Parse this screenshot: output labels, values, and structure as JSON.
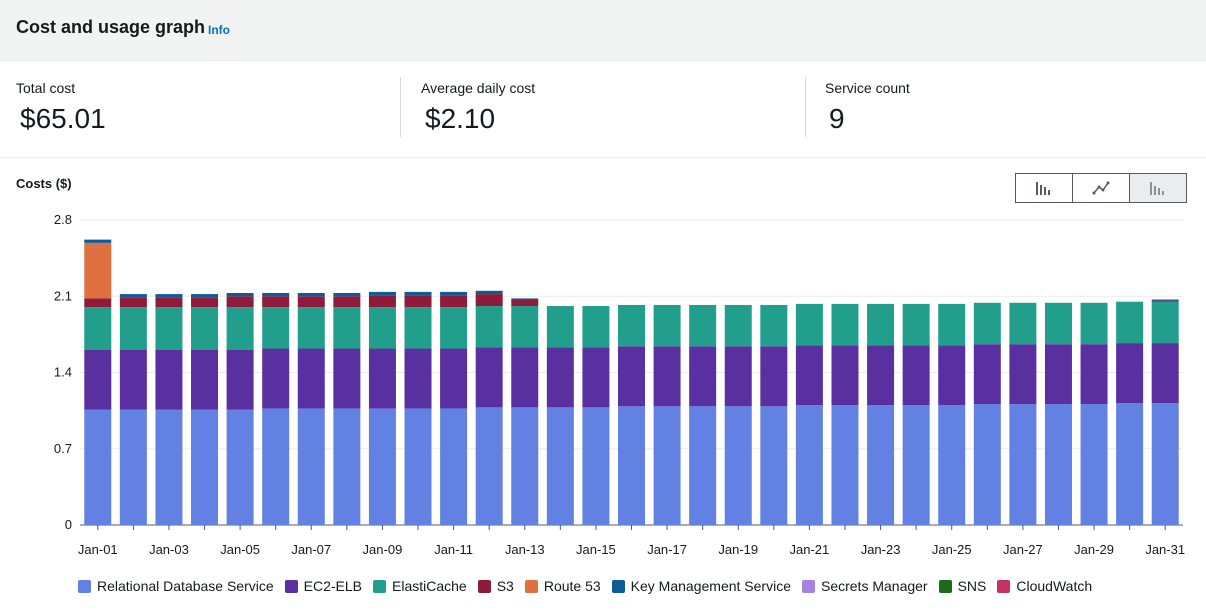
{
  "header": {
    "title": "Cost and usage graph",
    "info_link": "Info"
  },
  "summary": [
    {
      "label": "Total cost",
      "value": "$65.01"
    },
    {
      "label": "Average daily cost",
      "value": "$2.10"
    },
    {
      "label": "Service count",
      "value": "9"
    }
  ],
  "chart_header": {
    "costs_label": "Costs ($)",
    "toggles": [
      {
        "icon": "bar-chart-icon",
        "active": false
      },
      {
        "icon": "line-chart-icon",
        "active": false
      },
      {
        "icon": "stacked-bar-chart-icon",
        "active": true
      }
    ]
  },
  "legend": [
    {
      "name": "Relational Database Service",
      "color": "#6281e2"
    },
    {
      "name": "EC2-ELB",
      "color": "#5a2fa0"
    },
    {
      "name": "ElastiCache",
      "color": "#229e8d"
    },
    {
      "name": "S3",
      "color": "#8e1b3a"
    },
    {
      "name": "Route 53",
      "color": "#e07040"
    },
    {
      "name": "Key Management Service",
      "color": "#0f5a98"
    },
    {
      "name": "Secrets Manager",
      "color": "#a782e2"
    },
    {
      "name": "SNS",
      "color": "#1a6b1a"
    },
    {
      "name": "CloudWatch",
      "color": "#c8315e"
    }
  ],
  "chart_data": {
    "type": "bar",
    "stacked": true,
    "title": "",
    "xlabel": "",
    "ylabel": "Costs ($)",
    "ylim": [
      0,
      2.8
    ],
    "yticks": [
      "0",
      "0.7",
      "1.4",
      "2.1",
      "2.8"
    ],
    "grid": true,
    "legend_position": "bottom",
    "categories": [
      "Jan-01",
      "Jan-02",
      "Jan-03",
      "Jan-04",
      "Jan-05",
      "Jan-06",
      "Jan-07",
      "Jan-08",
      "Jan-09",
      "Jan-10",
      "Jan-11",
      "Jan-12",
      "Jan-13",
      "Jan-14",
      "Jan-15",
      "Jan-16",
      "Jan-17",
      "Jan-18",
      "Jan-19",
      "Jan-20",
      "Jan-21",
      "Jan-22",
      "Jan-23",
      "Jan-24",
      "Jan-25",
      "Jan-26",
      "Jan-27",
      "Jan-28",
      "Jan-29",
      "Jan-30",
      "Jan-31"
    ],
    "xtick_labels": [
      "Jan-01",
      "",
      "Jan-03",
      "",
      "Jan-05",
      "",
      "Jan-07",
      "",
      "Jan-09",
      "",
      "Jan-11",
      "",
      "Jan-13",
      "",
      "Jan-15",
      "",
      "Jan-17",
      "",
      "Jan-19",
      "",
      "Jan-21",
      "",
      "Jan-23",
      "",
      "Jan-25",
      "",
      "Jan-27",
      "",
      "Jan-29",
      "",
      "Jan-31"
    ],
    "series": [
      {
        "name": "Relational Database Service",
        "color": "#6281e2",
        "values": [
          1.06,
          1.06,
          1.06,
          1.06,
          1.06,
          1.07,
          1.07,
          1.07,
          1.07,
          1.07,
          1.07,
          1.08,
          1.08,
          1.08,
          1.08,
          1.09,
          1.09,
          1.09,
          1.09,
          1.09,
          1.1,
          1.1,
          1.1,
          1.1,
          1.1,
          1.11,
          1.11,
          1.11,
          1.11,
          1.12,
          1.12
        ]
      },
      {
        "name": "EC2-ELB",
        "color": "#5a2fa0",
        "values": [
          0.55,
          0.55,
          0.55,
          0.55,
          0.55,
          0.55,
          0.55,
          0.55,
          0.55,
          0.55,
          0.55,
          0.55,
          0.55,
          0.55,
          0.55,
          0.55,
          0.55,
          0.55,
          0.55,
          0.55,
          0.55,
          0.55,
          0.55,
          0.55,
          0.55,
          0.55,
          0.55,
          0.55,
          0.55,
          0.55,
          0.55
        ]
      },
      {
        "name": "ElastiCache",
        "color": "#229e8d",
        "values": [
          0.39,
          0.39,
          0.39,
          0.39,
          0.39,
          0.38,
          0.38,
          0.38,
          0.38,
          0.38,
          0.38,
          0.38,
          0.38,
          0.38,
          0.38,
          0.38,
          0.38,
          0.38,
          0.38,
          0.38,
          0.38,
          0.38,
          0.38,
          0.38,
          0.38,
          0.38,
          0.38,
          0.38,
          0.38,
          0.38,
          0.38
        ]
      },
      {
        "name": "S3",
        "color": "#8e1b3a",
        "values": [
          0.08,
          0.09,
          0.09,
          0.09,
          0.1,
          0.1,
          0.1,
          0.1,
          0.11,
          0.11,
          0.11,
          0.11,
          0.06,
          0,
          0,
          0,
          0,
          0,
          0,
          0,
          0,
          0,
          0,
          0,
          0,
          0,
          0,
          0,
          0,
          0,
          0.01
        ]
      },
      {
        "name": "Route 53",
        "color": "#e07040",
        "values": [
          0.51,
          0,
          0,
          0,
          0,
          0,
          0,
          0,
          0,
          0,
          0,
          0,
          0,
          0,
          0,
          0,
          0,
          0,
          0,
          0,
          0,
          0,
          0,
          0,
          0,
          0,
          0,
          0,
          0,
          0,
          0
        ]
      },
      {
        "name": "Key Management Service",
        "color": "#0f5a98",
        "values": [
          0.03,
          0.03,
          0.03,
          0.03,
          0.03,
          0.03,
          0.03,
          0.03,
          0.03,
          0.03,
          0.03,
          0.03,
          0.01,
          0,
          0,
          0,
          0,
          0,
          0,
          0,
          0,
          0,
          0,
          0,
          0,
          0,
          0,
          0,
          0,
          0,
          0.01
        ]
      },
      {
        "name": "Secrets Manager",
        "color": "#a782e2",
        "values": [
          0,
          0,
          0,
          0,
          0,
          0,
          0,
          0,
          0,
          0,
          0,
          0,
          0,
          0,
          0,
          0,
          0,
          0,
          0,
          0,
          0,
          0,
          0,
          0,
          0,
          0,
          0,
          0,
          0,
          0,
          0
        ]
      },
      {
        "name": "SNS",
        "color": "#1a6b1a",
        "values": [
          0,
          0,
          0,
          0,
          0,
          0,
          0,
          0,
          0,
          0,
          0,
          0,
          0,
          0,
          0,
          0,
          0,
          0,
          0,
          0,
          0,
          0,
          0,
          0,
          0,
          0,
          0,
          0,
          0,
          0,
          0
        ]
      },
      {
        "name": "CloudWatch",
        "color": "#c8315e",
        "values": [
          0,
          0,
          0,
          0,
          0,
          0,
          0,
          0,
          0,
          0,
          0,
          0,
          0,
          0,
          0,
          0,
          0,
          0,
          0,
          0,
          0,
          0,
          0,
          0,
          0,
          0,
          0,
          0,
          0,
          0,
          0
        ]
      }
    ]
  }
}
